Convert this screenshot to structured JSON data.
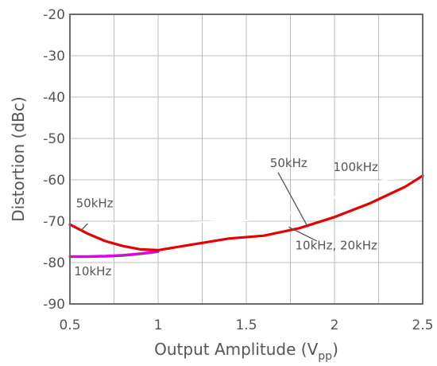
{
  "chart_data": {
    "type": "line",
    "title": "",
    "xlabel": "Output Amplitude (V",
    "xlabel_sub": "pp",
    "xlabel_close": ")",
    "ylabel": "Distortion (dBc)",
    "xlim": [
      0.5,
      2.5
    ],
    "ylim": [
      -90,
      -20
    ],
    "xticks": [
      0.5,
      1,
      1.5,
      2,
      2.5
    ],
    "xtick_labels": [
      "0.5",
      "1",
      "1.5",
      "2",
      "2.5"
    ],
    "yticks": [
      -90,
      -80,
      -70,
      -60,
      -50,
      -40,
      -30,
      -20
    ],
    "ytick_labels": [
      "-90",
      "-80",
      "-70",
      "-60",
      "-50",
      "-40",
      "-30",
      "-20"
    ],
    "grid": true,
    "series": [
      {
        "name": "10kHz",
        "color": "#e600e6",
        "x": [
          0.5,
          0.6,
          0.7,
          0.8,
          0.9,
          1.0
        ],
        "y": [
          -78.5,
          -78.5,
          -78.4,
          -78.2,
          -77.8,
          -77.3
        ]
      },
      {
        "name": "20kHz",
        "color": "#1a7a1a",
        "x": [
          0.5,
          0.6,
          0.7,
          0.8,
          0.9,
          1.0
        ],
        "y": [
          -78.6,
          -78.6,
          -78.5,
          -78.3,
          -77.9,
          -77.4
        ]
      },
      {
        "name": "50kHz",
        "color": "#e60000",
        "x": [
          0.5,
          0.6,
          0.7,
          0.8,
          0.9,
          1.0,
          1.2,
          1.4,
          1.6,
          1.8,
          2.0,
          2.2,
          2.4,
          2.5
        ],
        "y": [
          -70.8,
          -73.0,
          -74.8,
          -76.0,
          -76.8,
          -77.0,
          -75.6,
          -74.2,
          -73.5,
          -71.7,
          -69.0,
          -65.7,
          -61.7,
          -59.0
        ]
      },
      {
        "name": "100kHz",
        "color": "#ffffff",
        "x": [
          0.5,
          0.7,
          0.9,
          1.1,
          1.3,
          1.5,
          1.7,
          1.9,
          2.1,
          2.3,
          2.5
        ],
        "y": [
          -70.5,
          -70.6,
          -70.5,
          -70.4,
          -70.2,
          -69.8,
          -68.6,
          -66.0,
          -62.5,
          -59.8,
          -59.5
        ]
      }
    ],
    "annotations": [
      {
        "text": "50kHz",
        "x": 0.64,
        "y": -66.6,
        "leader": {
          "x1": 0.6,
          "y1": -70.6,
          "x2": 0.56,
          "y2": -72.4
        }
      },
      {
        "text": "10kHz",
        "x": 0.63,
        "y": -83.1,
        "leader": null
      },
      {
        "text": "50kHz",
        "x": 1.74,
        "y": -56.9,
        "leader": {
          "x1": 1.68,
          "y1": -58.2,
          "x2": 1.85,
          "y2": -71.5
        }
      },
      {
        "text": "100kHz",
        "x": 2.12,
        "y": -57.9,
        "leader": null
      },
      {
        "text": "10kHz, 20kHz",
        "x": 2.01,
        "y": -76.8,
        "leader": {
          "x1": 1.9,
          "y1": -74.8,
          "x2": 1.74,
          "y2": -71.4
        }
      }
    ]
  }
}
